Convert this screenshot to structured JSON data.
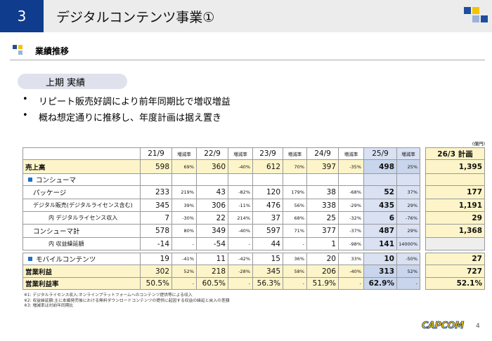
{
  "header": {
    "number": "3",
    "title": "デジタルコンテンツ事業①"
  },
  "section": "業績推移",
  "pill": "上期 実績",
  "bullets": [
    "リピート販売好調により前年同期比で増収増益",
    "概ね想定通りに推移し、年度計画は据え置き"
  ],
  "table": {
    "unit": "(億円)",
    "columns": [
      "21/9",
      "増減率",
      "22/9",
      "増減率",
      "23/9",
      "増減率",
      "24/9",
      "増減率",
      "25/9",
      "増減率",
      "26/3 計画"
    ],
    "rows": [
      {
        "label": "売上高",
        "kind": "total",
        "cells": [
          "598",
          "69%",
          "360",
          "-40%",
          "612",
          "70%",
          "397",
          "-35%",
          "498",
          "25%",
          "1,395"
        ]
      },
      {
        "label": "コンシューマ",
        "kind": "section"
      },
      {
        "label": "パッケージ",
        "kind": "sub",
        "cells": [
          "233",
          "219%",
          "43",
          "-82%",
          "120",
          "179%",
          "38",
          "-68%",
          "52",
          "37%",
          "177"
        ]
      },
      {
        "label": "デジタル販売(デジタルライセンス含む)",
        "kind": "sub",
        "cells": [
          "345",
          "39%",
          "306",
          "-11%",
          "476",
          "56%",
          "338",
          "-29%",
          "435",
          "29%",
          "1,191"
        ]
      },
      {
        "label": "内 デジタルライセンス収入",
        "kind": "subsub",
        "cells": [
          "7",
          "-30%",
          "22",
          "214%",
          "37",
          "68%",
          "25",
          "-32%",
          "6",
          "-76%",
          "29"
        ]
      },
      {
        "label": "コンシューマ計",
        "kind": "sub",
        "cells": [
          "578",
          "80%",
          "349",
          "-40%",
          "597",
          "71%",
          "377",
          "-37%",
          "487",
          "29%",
          "1,368"
        ]
      },
      {
        "label": "内 収益繰延額",
        "kind": "subsub",
        "cells": [
          "-14",
          "-",
          "-54",
          "-",
          "44",
          "-",
          "1",
          "-98%",
          "141",
          "14000%",
          null
        ]
      },
      {
        "label": "モバイルコンテンツ",
        "kind": "section",
        "cells": [
          "19",
          "-41%",
          "11",
          "-42%",
          "15",
          "36%",
          "20",
          "33%",
          "10",
          "-50%",
          "27"
        ]
      },
      {
        "label": "営業利益",
        "kind": "total",
        "cells": [
          "302",
          "52%",
          "218",
          "-28%",
          "345",
          "58%",
          "206",
          "-40%",
          "313",
          "52%",
          "727"
        ]
      },
      {
        "label": "営業利益率",
        "kind": "total",
        "cells": [
          "50.5%",
          "-",
          "60.5%",
          "-",
          "56.3%",
          "-",
          "51.9%",
          "-",
          "62.9%",
          "-",
          "52.1%"
        ]
      }
    ]
  },
  "footnotes": [
    "※1: デジタルライセンス収入:オンラインプラットフォームへのコンテンツ提供等による収入",
    "※2: 収益繰延額:主に本編発売後における無料ダウンロードコンテンツの提供に起因する収益の繰延と戻入の差額",
    "※3: 増減率は対前年同期比"
  ],
  "footer": {
    "logo": "CAPCOM",
    "page": "4"
  }
}
